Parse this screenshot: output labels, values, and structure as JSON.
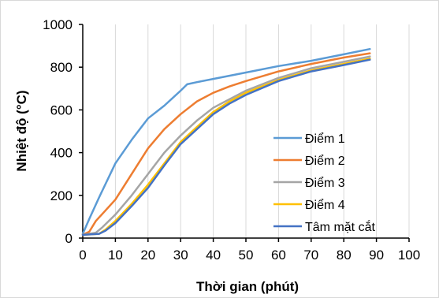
{
  "chart_data": {
    "type": "line",
    "title": "",
    "xlabel": "Thời gian (phút)",
    "ylabel": "Nhiệt độ (°C)",
    "xlim": [
      0,
      100
    ],
    "ylim": [
      0,
      1000
    ],
    "xticks": [
      0,
      10,
      20,
      30,
      40,
      50,
      60,
      70,
      80,
      90,
      100
    ],
    "yticks": [
      0,
      200,
      400,
      600,
      800,
      1000
    ],
    "grid": "vertical",
    "legend": "right",
    "series": [
      {
        "name": "Điểm 1",
        "color": "#5b9bd5",
        "x": [
          0,
          2,
          5,
          10,
          15,
          20,
          25,
          30,
          32,
          35,
          40,
          50,
          60,
          70,
          80,
          88
        ],
        "y": [
          20,
          90,
          190,
          350,
          460,
          560,
          620,
          690,
          720,
          730,
          745,
          775,
          805,
          830,
          860,
          885
        ]
      },
      {
        "name": "Điểm 2",
        "color": "#ed7d31",
        "x": [
          0,
          2,
          4,
          7,
          10,
          15,
          20,
          25,
          30,
          35,
          40,
          45,
          50,
          60,
          70,
          80,
          88
        ],
        "y": [
          15,
          30,
          80,
          130,
          180,
          300,
          420,
          510,
          580,
          640,
          680,
          710,
          735,
          780,
          815,
          845,
          865
        ]
      },
      {
        "name": "Điểm 3",
        "color": "#a5a5a5",
        "x": [
          0,
          4,
          6,
          10,
          15,
          20,
          25,
          30,
          35,
          40,
          45,
          50,
          60,
          70,
          80,
          88
        ],
        "y": [
          15,
          25,
          50,
          110,
          200,
          300,
          400,
          480,
          550,
          610,
          650,
          690,
          750,
          795,
          825,
          850
        ]
      },
      {
        "name": "Điểm 4",
        "color": "#ffc000",
        "x": [
          0,
          5,
          7,
          10,
          15,
          20,
          25,
          30,
          35,
          40,
          45,
          50,
          60,
          70,
          80,
          88
        ],
        "y": [
          15,
          20,
          40,
          80,
          160,
          250,
          350,
          450,
          520,
          590,
          640,
          680,
          740,
          785,
          815,
          840
        ]
      },
      {
        "name": "Tâm mặt cắt",
        "color": "#4472c4",
        "x": [
          0,
          5,
          7,
          10,
          15,
          20,
          25,
          30,
          35,
          40,
          45,
          50,
          60,
          70,
          80,
          88
        ],
        "y": [
          15,
          20,
          35,
          70,
          150,
          235,
          340,
          440,
          510,
          580,
          630,
          670,
          735,
          780,
          810,
          835
        ]
      }
    ]
  }
}
